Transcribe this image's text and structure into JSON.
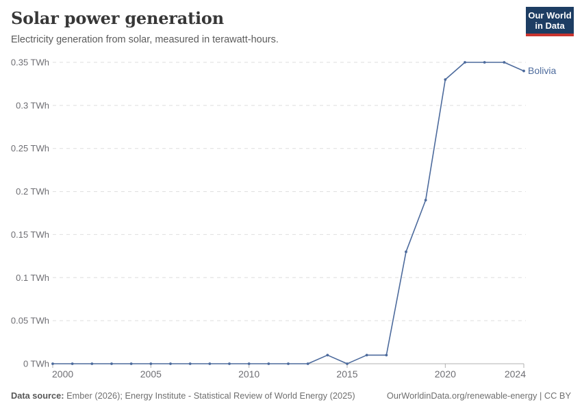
{
  "header": {
    "title": "Solar power generation",
    "subtitle": "Electricity generation from solar, measured in terawatt-hours.",
    "logo": {
      "line1": "Our World",
      "line2": "in Data"
    }
  },
  "chart_data": {
    "type": "line",
    "title": "Solar power generation",
    "unit": "TWh",
    "x": [
      2000,
      2001,
      2002,
      2003,
      2004,
      2005,
      2006,
      2007,
      2008,
      2009,
      2010,
      2011,
      2012,
      2013,
      2014,
      2015,
      2016,
      2017,
      2018,
      2019,
      2020,
      2021,
      2022,
      2023,
      2024
    ],
    "series": [
      {
        "name": "Bolivia",
        "color": "#4c6a9c",
        "values": [
          0,
          0,
          0,
          0,
          0,
          0,
          0,
          0,
          0,
          0,
          0,
          0,
          0,
          0,
          0.01,
          0,
          0.01,
          0.01,
          0.13,
          0.19,
          0.33,
          0.35,
          0.35,
          0.35,
          0.34
        ]
      }
    ],
    "ylim": [
      0,
      0.35
    ],
    "yticks": [
      0,
      0.05,
      0.1,
      0.15,
      0.2,
      0.25,
      0.3,
      0.35
    ],
    "ytick_labels": [
      "0 TWh",
      "0.05 TWh",
      "0.1 TWh",
      "0.15 TWh",
      "0.2 TWh",
      "0.25 TWh",
      "0.3 TWh",
      "0.35 TWh"
    ],
    "xticks": [
      2000,
      2005,
      2010,
      2015,
      2020,
      2024
    ],
    "grid": "horizontal-dashed",
    "legend_position": "end-of-line-label"
  },
  "colors": {
    "line": "#4c6a9c",
    "grid": "#dedede",
    "axis": "#b0b0b0",
    "tick_text": "#6e6e73",
    "logo_bg": "#1d3d63",
    "logo_accent": "#c9342f"
  },
  "footer": {
    "source_label": "Data source:",
    "source_text": "Ember (2026); Energy Institute - Statistical Review of World Energy (2025)",
    "credit": "OurWorldinData.org/renewable-energy | CC BY"
  }
}
